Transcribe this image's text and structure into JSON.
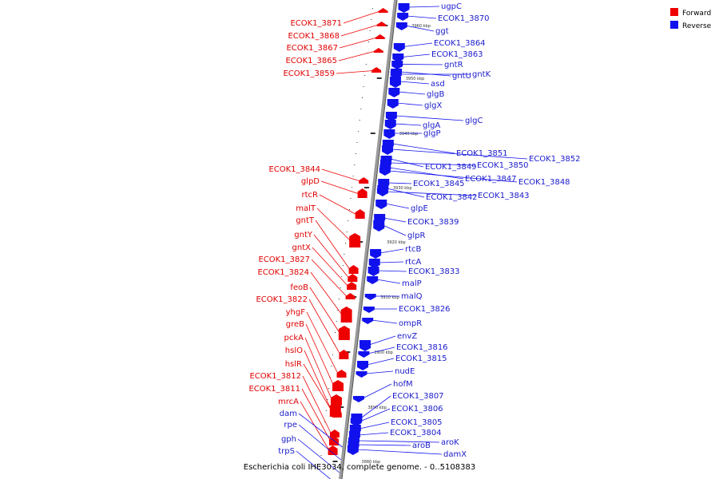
{
  "caption": "Escherichia coli IHE3034, complete genome. - 0..5108383",
  "legend": [
    {
      "label": "Forward",
      "color": "#ee0000"
    },
    {
      "label": "Reverse",
      "color": "#1111ee"
    }
  ],
  "colors": {
    "forward": "#ee0000",
    "reverse": "#1111ee",
    "backbone": "#999999"
  },
  "ticks": [
    "3960 kbp",
    "3950 kbp",
    "3940 kbp",
    "3930 kbp",
    "3920 kbp",
    "3910 kbp",
    "3900 kbp",
    "3890 kbp",
    "3880 kbp"
  ],
  "forward_genes": [
    "ECOK1_3871",
    "ECOK1_3868",
    "ECOK1_3867",
    "ECOK1_3865",
    "ECOK1_3859",
    "ECOK1_3844",
    "glpD",
    "rtcR",
    "malT",
    "gntT",
    "gntY",
    "gntX",
    "ECOK1_3827",
    "ECOK1_3824",
    "feoB",
    "ECOK1_3822",
    "yhgF",
    "greB",
    "pckA",
    "hslO",
    "hslR",
    "ECOK1_3812",
    "ECOK1_3811",
    "mrcA"
  ],
  "reverse_genes": [
    "ugpC",
    "ECOK1_3870",
    "ggt",
    "ECOK1_3864",
    "ECOK1_3863",
    "gntR",
    "gntU",
    "gntK",
    "asd",
    "glgB",
    "glgX",
    "glgC",
    "glgA",
    "glgP",
    "ECOK1_3851",
    "ECOK1_3852",
    "ECOK1_3849",
    "ECOK1_3850",
    "ECOK1_3847",
    "ECOK1_3848",
    "ECOK1_3845",
    "ECOK1_3842",
    "ECOK1_3843",
    "glpE",
    "ECOK1_3839",
    "glpR",
    "rtcB",
    "rtcA",
    "ECOK1_3833",
    "malP",
    "malQ",
    "ECOK1_3826",
    "ompR",
    "envZ",
    "ECOK1_3816",
    "ECOK1_3815",
    "nudE",
    "hofM",
    "ECOK1_3807",
    "ECOK1_3806",
    "ECOK1_3805",
    "ECOK1_3804",
    "aroB",
    "aroK",
    "damX"
  ],
  "left_reverse_genes": [
    "dam",
    "rpe",
    "gph",
    "trpS"
  ]
}
